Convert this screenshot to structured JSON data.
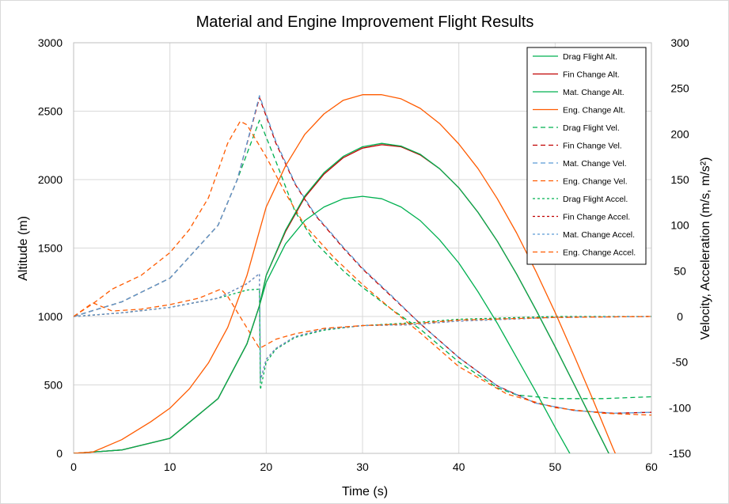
{
  "chart_data": {
    "type": "line",
    "title": "Material and Engine Improvement Flight Results",
    "xlabel": "Time (s)",
    "ylabel": "Altitude (m)",
    "y2label": "Velocity, Acceleration (m/s, m/s²)",
    "xlim": [
      0,
      60
    ],
    "ylim": [
      0,
      3000
    ],
    "y2lim": [
      -150,
      300
    ],
    "x_ticks": [
      "0",
      "10",
      "20",
      "30",
      "40",
      "50",
      "60"
    ],
    "y_ticks": [
      "0",
      "500",
      "1000",
      "1500",
      "2000",
      "2500",
      "3000"
    ],
    "y2_ticks": [
      "-150",
      "-100",
      "-50",
      "0",
      "50",
      "100",
      "150",
      "200",
      "250",
      "300"
    ],
    "grid": true,
    "legend_position": "top-right",
    "series": [
      {
        "name": "Drag Flight Alt.",
        "axis": "left",
        "dash": "solid",
        "color": "#00b050",
        "points": [
          [
            0,
            0
          ],
          [
            5,
            25
          ],
          [
            10,
            110
          ],
          [
            15,
            400
          ],
          [
            18,
            800
          ],
          [
            19.3,
            1080
          ],
          [
            20,
            1250
          ],
          [
            22,
            1530
          ],
          [
            24,
            1700
          ],
          [
            26,
            1800
          ],
          [
            28,
            1860
          ],
          [
            30,
            1878
          ],
          [
            32,
            1860
          ],
          [
            34,
            1800
          ],
          [
            36,
            1700
          ],
          [
            38,
            1560
          ],
          [
            40,
            1390
          ],
          [
            42,
            1180
          ],
          [
            44,
            950
          ],
          [
            46,
            700
          ],
          [
            48,
            450
          ],
          [
            50,
            190
          ],
          [
            52,
            -60
          ]
        ]
      },
      {
        "name": "Fin Change Alt.",
        "axis": "left",
        "dash": "solid",
        "color": "#c00000",
        "points": [
          [
            0,
            0
          ],
          [
            5,
            25
          ],
          [
            10,
            110
          ],
          [
            15,
            400
          ],
          [
            18,
            800
          ],
          [
            19.3,
            1080
          ],
          [
            20,
            1300
          ],
          [
            22,
            1620
          ],
          [
            24,
            1870
          ],
          [
            26,
            2040
          ],
          [
            28,
            2160
          ],
          [
            30,
            2230
          ],
          [
            32,
            2255
          ],
          [
            34,
            2240
          ],
          [
            36,
            2180
          ],
          [
            38,
            2080
          ],
          [
            40,
            1940
          ],
          [
            42,
            1760
          ],
          [
            44,
            1550
          ],
          [
            46,
            1310
          ],
          [
            48,
            1050
          ],
          [
            50,
            780
          ],
          [
            52,
            500
          ],
          [
            54,
            220
          ],
          [
            56,
            -60
          ]
        ]
      },
      {
        "name": "Mat. Change Alt.",
        "axis": "left",
        "dash": "solid",
        "color": "#00b050",
        "points": [
          [
            0,
            0
          ],
          [
            5,
            25
          ],
          [
            10,
            110
          ],
          [
            15,
            400
          ],
          [
            18,
            800
          ],
          [
            19.3,
            1080
          ],
          [
            20,
            1300
          ],
          [
            22,
            1630
          ],
          [
            24,
            1880
          ],
          [
            26,
            2050
          ],
          [
            28,
            2170
          ],
          [
            30,
            2240
          ],
          [
            32,
            2265
          ],
          [
            34,
            2245
          ],
          [
            36,
            2185
          ],
          [
            38,
            2080
          ],
          [
            40,
            1940
          ],
          [
            42,
            1760
          ],
          [
            44,
            1550
          ],
          [
            46,
            1310
          ],
          [
            48,
            1050
          ],
          [
            50,
            780
          ],
          [
            52,
            500
          ],
          [
            54,
            220
          ],
          [
            56,
            -60
          ]
        ]
      },
      {
        "name": "Eng. Change Alt.",
        "axis": "left",
        "dash": "solid",
        "color": "#ff5b00",
        "points": [
          [
            0,
            0
          ],
          [
            2,
            10
          ],
          [
            5,
            100
          ],
          [
            8,
            230
          ],
          [
            10,
            330
          ],
          [
            12,
            470
          ],
          [
            14,
            660
          ],
          [
            16,
            920
          ],
          [
            18,
            1300
          ],
          [
            20,
            1800
          ],
          [
            22,
            2100
          ],
          [
            24,
            2330
          ],
          [
            26,
            2480
          ],
          [
            28,
            2580
          ],
          [
            30,
            2620
          ],
          [
            32,
            2620
          ],
          [
            34,
            2590
          ],
          [
            36,
            2520
          ],
          [
            38,
            2410
          ],
          [
            40,
            2260
          ],
          [
            42,
            2080
          ],
          [
            44,
            1860
          ],
          [
            46,
            1610
          ],
          [
            48,
            1330
          ],
          [
            50,
            1030
          ],
          [
            52,
            710
          ],
          [
            54,
            380
          ],
          [
            56,
            40
          ],
          [
            57,
            -120
          ]
        ]
      },
      {
        "name": "Drag Flight Vel.",
        "axis": "right",
        "dash": "dashed",
        "color": "#00b050",
        "points": [
          [
            0,
            0
          ],
          [
            5,
            16
          ],
          [
            10,
            42
          ],
          [
            15,
            100
          ],
          [
            17,
            150
          ],
          [
            19.3,
            215
          ],
          [
            21,
            170
          ],
          [
            23,
            115
          ],
          [
            25,
            82
          ],
          [
            28,
            50
          ],
          [
            30,
            32
          ],
          [
            33,
            8
          ],
          [
            36,
            -14
          ],
          [
            40,
            -50
          ],
          [
            44,
            -78
          ],
          [
            46,
            -86
          ],
          [
            50,
            -90
          ],
          [
            55,
            -90
          ],
          [
            60,
            -88
          ]
        ]
      },
      {
        "name": "Fin Change Vel.",
        "axis": "right",
        "dash": "dashed",
        "color": "#c00000",
        "points": [
          [
            0,
            0
          ],
          [
            5,
            16
          ],
          [
            10,
            42
          ],
          [
            15,
            100
          ],
          [
            17,
            150
          ],
          [
            19.3,
            240
          ],
          [
            21,
            190
          ],
          [
            23,
            145
          ],
          [
            25,
            112
          ],
          [
            28,
            75
          ],
          [
            30,
            52
          ],
          [
            33,
            22
          ],
          [
            36,
            -8
          ],
          [
            40,
            -45
          ],
          [
            44,
            -76
          ],
          [
            48,
            -95
          ],
          [
            52,
            -103
          ],
          [
            56,
            -106
          ],
          [
            60,
            -105
          ]
        ]
      },
      {
        "name": "Mat. Change Vel.",
        "axis": "right",
        "dash": "dashed",
        "color": "#5b9bd5",
        "points": [
          [
            0,
            0
          ],
          [
            5,
            16
          ],
          [
            10,
            42
          ],
          [
            15,
            100
          ],
          [
            17,
            150
          ],
          [
            19.3,
            242
          ],
          [
            21,
            192
          ],
          [
            23,
            146
          ],
          [
            25,
            113
          ],
          [
            28,
            76
          ],
          [
            30,
            53
          ],
          [
            33,
            23
          ],
          [
            36,
            -8
          ],
          [
            40,
            -45
          ],
          [
            44,
            -76
          ],
          [
            48,
            -95
          ],
          [
            52,
            -103
          ],
          [
            56,
            -106
          ],
          [
            60,
            -105
          ]
        ]
      },
      {
        "name": "Eng. Change Vel.",
        "axis": "right",
        "dash": "dashed",
        "color": "#ff5b00",
        "points": [
          [
            0,
            0
          ],
          [
            2,
            14
          ],
          [
            4,
            30
          ],
          [
            7,
            45
          ],
          [
            10,
            70
          ],
          [
            12,
            95
          ],
          [
            14,
            130
          ],
          [
            16,
            190
          ],
          [
            17.3,
            214
          ],
          [
            18,
            210
          ],
          [
            20,
            175
          ],
          [
            22,
            135
          ],
          [
            24,
            100
          ],
          [
            27,
            65
          ],
          [
            30,
            35
          ],
          [
            33,
            8
          ],
          [
            36,
            -18
          ],
          [
            40,
            -55
          ],
          [
            45,
            -85
          ],
          [
            50,
            -100
          ],
          [
            55,
            -106
          ],
          [
            60,
            -108
          ]
        ]
      },
      {
        "name": "Drag Flight Accel.",
        "axis": "right",
        "dash": "dotted",
        "color": "#00b050",
        "points": [
          [
            0,
            0
          ],
          [
            5,
            4
          ],
          [
            10,
            10
          ],
          [
            15,
            20
          ],
          [
            18,
            29
          ],
          [
            19.3,
            30
          ],
          [
            19.4,
            -80
          ],
          [
            20,
            -50
          ],
          [
            21,
            -36
          ],
          [
            23,
            -23
          ],
          [
            26,
            -15
          ],
          [
            30,
            -10
          ],
          [
            35,
            -7
          ],
          [
            40,
            -3
          ],
          [
            50,
            0
          ],
          [
            60,
            0
          ]
        ]
      },
      {
        "name": "Fin Change Accel.",
        "axis": "right",
        "dash": "dotted",
        "color": "#c00000",
        "points": [
          [
            0,
            0
          ],
          [
            5,
            4
          ],
          [
            10,
            10
          ],
          [
            15,
            20
          ],
          [
            18,
            36
          ],
          [
            19.3,
            47
          ],
          [
            19.4,
            -70
          ],
          [
            20,
            -47
          ],
          [
            21,
            -35
          ],
          [
            23,
            -22
          ],
          [
            26,
            -14
          ],
          [
            30,
            -10
          ],
          [
            35,
            -9
          ],
          [
            40,
            -5
          ],
          [
            50,
            -1
          ],
          [
            60,
            0
          ]
        ]
      },
      {
        "name": "Mat. Change Accel.",
        "axis": "right",
        "dash": "dotted",
        "color": "#5b9bd5",
        "points": [
          [
            0,
            0
          ],
          [
            5,
            4
          ],
          [
            10,
            10
          ],
          [
            15,
            20
          ],
          [
            18,
            36
          ],
          [
            19.3,
            47
          ],
          [
            19.4,
            -70
          ],
          [
            20,
            -47
          ],
          [
            21,
            -35
          ],
          [
            23,
            -22
          ],
          [
            26,
            -14
          ],
          [
            30,
            -10
          ],
          [
            35,
            -9
          ],
          [
            40,
            -5
          ],
          [
            50,
            -1
          ],
          [
            60,
            0
          ]
        ]
      },
      {
        "name": "Eng. Change Accel.",
        "axis": "right",
        "dash": "dashed",
        "color": "#ff5b00",
        "points": [
          [
            0,
            0
          ],
          [
            2,
            15
          ],
          [
            4,
            6
          ],
          [
            7,
            8
          ],
          [
            10,
            13
          ],
          [
            13,
            20
          ],
          [
            15.3,
            30
          ],
          [
            16,
            22
          ],
          [
            19.3,
            -35
          ],
          [
            21,
            -25
          ],
          [
            23,
            -19
          ],
          [
            26,
            -13
          ],
          [
            30,
            -10
          ],
          [
            35,
            -8
          ],
          [
            40,
            -4
          ],
          [
            50,
            -1
          ],
          [
            60,
            0
          ]
        ]
      }
    ]
  }
}
